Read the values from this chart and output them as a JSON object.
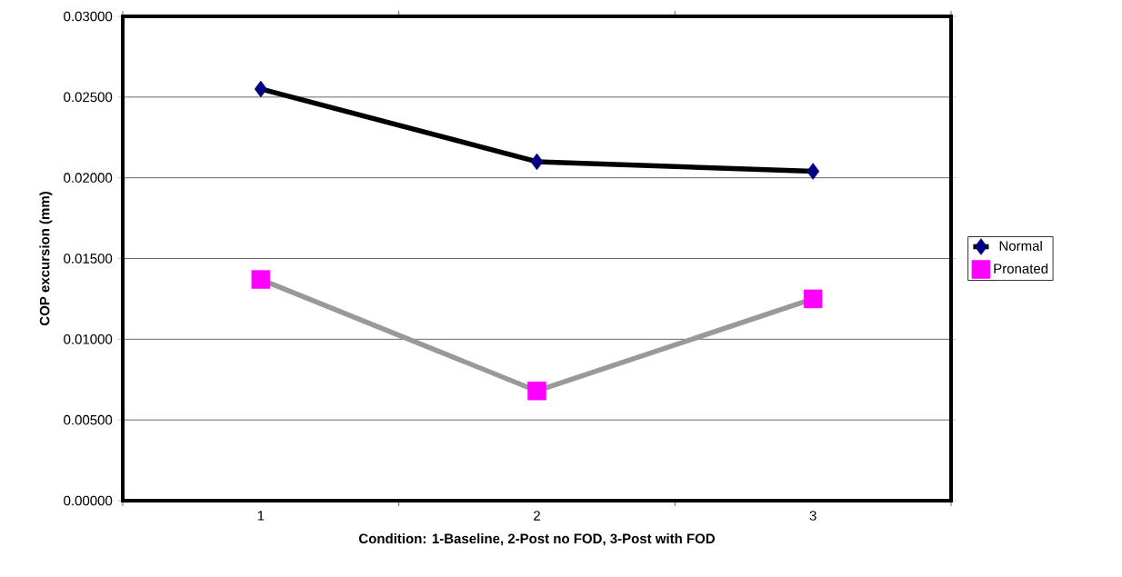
{
  "chart_data": {
    "type": "line",
    "xlabel": "Condition: 1-Baseline, 2-Post no FOD, 3-Post with FOD",
    "ylabel": "COP excursion (mm)",
    "categories": [
      "1",
      "2",
      "3"
    ],
    "series": [
      {
        "name": "Normal",
        "color": "#000080",
        "marker": "diamond",
        "values": [
          0.0255,
          0.021,
          0.0204
        ]
      },
      {
        "name": "Pronated",
        "color": "#ff00ff",
        "marker": "square",
        "values": [
          0.0137,
          0.0068,
          0.0125
        ]
      }
    ],
    "ylim": [
      0,
      0.03
    ],
    "yticks": [
      {
        "value": 0,
        "label": "0.00000"
      },
      {
        "value": 0.005,
        "label": "0.00500"
      },
      {
        "value": 0.01,
        "label": "0.01000"
      },
      {
        "value": 0.015,
        "label": "0.01500"
      },
      {
        "value": 0.02,
        "label": "0.02000"
      },
      {
        "value": 0.025,
        "label": "0.02500"
      },
      {
        "value": 0.03,
        "label": "0.03000"
      }
    ],
    "grid": "y",
    "legend": "right",
    "line_style": "solid"
  }
}
